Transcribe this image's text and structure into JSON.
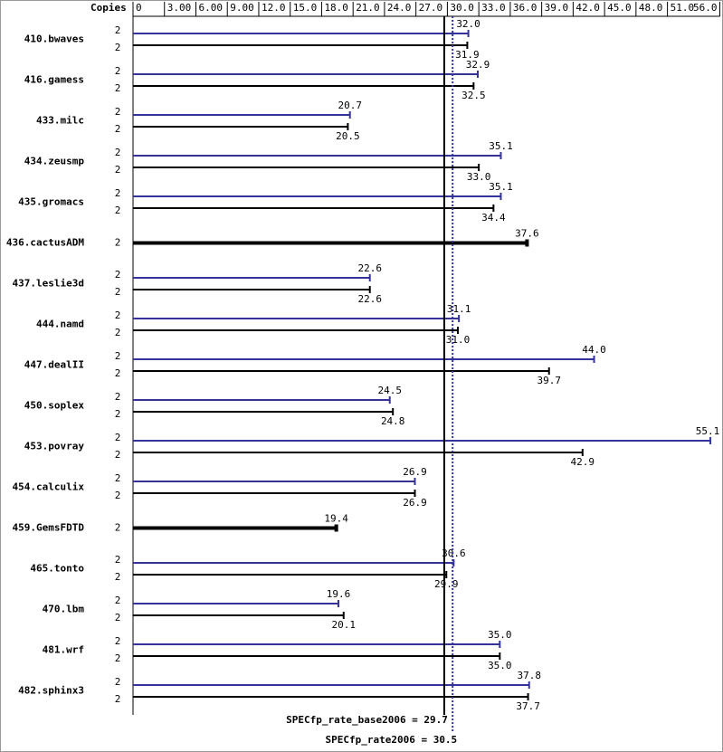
{
  "chart_data": {
    "type": "bar",
    "orientation": "horizontal",
    "copies_label": "Copies",
    "categories": [
      "410.bwaves",
      "416.gamess",
      "433.milc",
      "434.zeusmp",
      "435.gromacs",
      "436.cactusADM",
      "437.leslie3d",
      "444.namd",
      "447.dealII",
      "450.soplex",
      "453.povray",
      "454.calculix",
      "459.GemsFDTD",
      "465.tonto",
      "470.lbm",
      "481.wrf",
      "482.sphinx3"
    ],
    "series": [
      {
        "color": "#333399",
        "copies": [
          2,
          2,
          2,
          2,
          2,
          null,
          2,
          2,
          2,
          2,
          2,
          2,
          null,
          2,
          2,
          2,
          2
        ],
        "values": [
          32.0,
          32.9,
          20.7,
          35.1,
          35.1,
          null,
          22.6,
          31.1,
          44.0,
          24.5,
          55.1,
          26.9,
          null,
          30.6,
          19.6,
          35.0,
          37.8
        ],
        "value_labels": [
          "32.0",
          "32.9",
          "20.7",
          "35.1",
          "35.1",
          null,
          "22.6",
          "31.1",
          "44.0",
          "24.5",
          "55.1",
          "26.9",
          null,
          "30.6",
          "19.6",
          "35.0",
          "37.8"
        ]
      },
      {
        "color": "#000000",
        "copies": [
          2,
          2,
          2,
          2,
          2,
          2,
          2,
          2,
          2,
          2,
          2,
          2,
          2,
          2,
          2,
          2,
          2
        ],
        "values": [
          31.9,
          32.5,
          20.5,
          33.0,
          34.4,
          37.6,
          22.6,
          31.0,
          39.7,
          24.8,
          42.9,
          26.9,
          19.4,
          29.9,
          20.1,
          35.0,
          37.7
        ],
        "value_labels": [
          "31.9",
          "32.5",
          "20.5",
          "33.0",
          "34.4",
          "37.6",
          "22.6",
          "31.0",
          "39.7",
          "24.8",
          "42.9",
          "26.9",
          "19.4",
          "29.9",
          "20.1",
          "35.0",
          "37.7"
        ]
      }
    ],
    "xlim": [
      0,
      56
    ],
    "xticks": [
      0,
      {
        "value": 3,
        "label": "3.00"
      },
      {
        "value": 6,
        "label": "6.00"
      },
      {
        "value": 9,
        "label": "9.00"
      },
      {
        "value": 12,
        "label": "12.0"
      },
      {
        "value": 15,
        "label": "15.0"
      },
      {
        "value": 18,
        "label": "18.0"
      },
      {
        "value": 21,
        "label": "21.0"
      },
      {
        "value": 24,
        "label": "24.0"
      },
      {
        "value": 27,
        "label": "27.0"
      },
      {
        "value": 30,
        "label": "30.0"
      },
      {
        "value": 33,
        "label": "33.0"
      },
      {
        "value": 36,
        "label": "36.0"
      },
      {
        "value": 39,
        "label": "39.0"
      },
      {
        "value": 42,
        "label": "42.0"
      },
      {
        "value": 45,
        "label": "45.0"
      },
      {
        "value": 48,
        "label": "48.0"
      },
      {
        "value": 51,
        "label": "51.0"
      },
      {
        "value": 56,
        "label": "56.0"
      }
    ],
    "reference_lines": [
      {
        "label": "SPECfp_rate_base2006 = 29.7",
        "value": 29.7,
        "color": "#000000",
        "style": "solid"
      },
      {
        "label": "SPECfp_rate2006 = 30.5",
        "value": 30.5,
        "color": "#333399",
        "style": "dotted"
      }
    ]
  }
}
